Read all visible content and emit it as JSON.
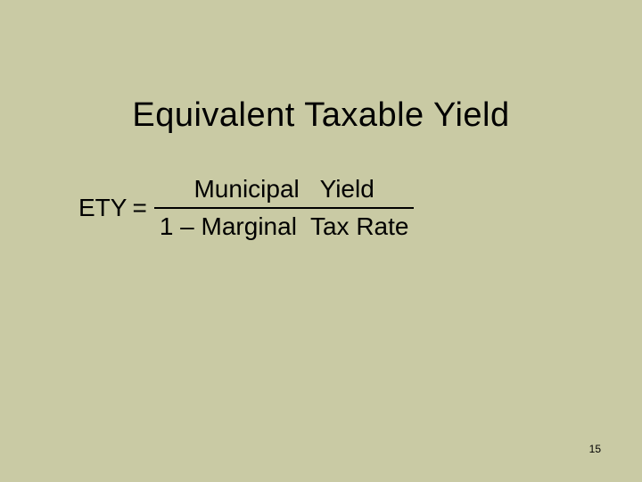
{
  "slide": {
    "title": "Equivalent Taxable Yield",
    "formula": {
      "lhs": "ETY",
      "equals": "=",
      "numerator": "Municipal   Yield",
      "denominator": "1 – Marginal  Tax Rate"
    },
    "page_number": "15",
    "background_color": "#c9caa4",
    "text_color": "#000000",
    "title_fontsize": 38,
    "formula_fontsize": 28,
    "pagenum_fontsize": 12
  }
}
